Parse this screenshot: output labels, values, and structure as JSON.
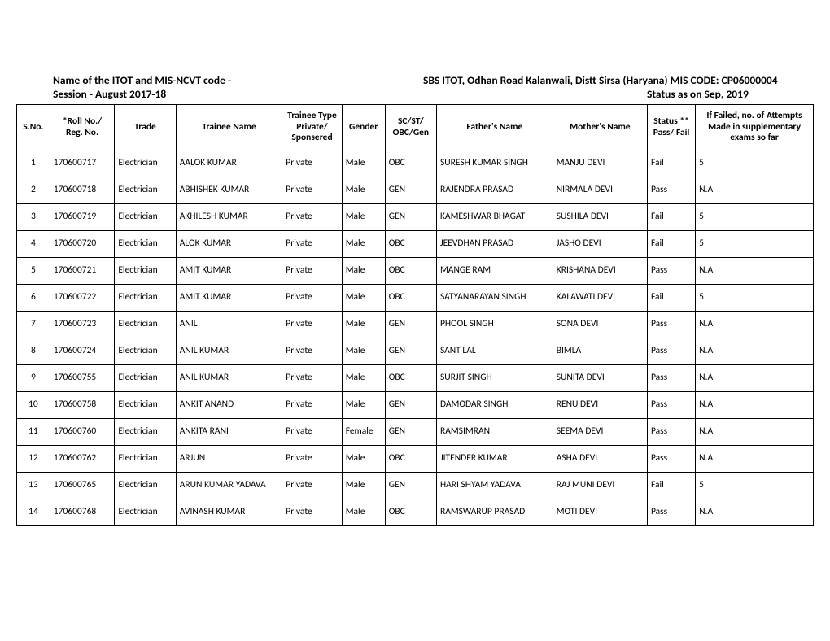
{
  "header": {
    "line1_left": "Name of the ITOT and MIS-NCVT code -",
    "line1_right": "SBS ITOT, Odhan Road Kalanwali, Distt Sirsa (Haryana) MIS CODE: CP06000004",
    "line2_left": "Session - August 2017-18",
    "line2_right": "Status as on Sep, 2019"
  },
  "columns": [
    "S.No.",
    "*Roll No./ Reg. No.",
    "Trade",
    "Trainee Name",
    "Trainee Type Private/ Sponsered",
    "Gender",
    "SC/ST/ OBC/Gen",
    "Father's Name",
    "Mother's Name",
    "Status ** Pass/ Fail",
    "If Failed, no. of Attempts Made in supplementary exams so far"
  ],
  "rows": [
    {
      "sno": "1",
      "roll": "170600717",
      "trade": "Electrician",
      "name": "AALOK KUMAR",
      "type": "Private",
      "gender": "Male",
      "cat": "OBC",
      "father": "SURESH KUMAR SINGH",
      "mother": "MANJU DEVI",
      "status": "Fail",
      "attempts": "5"
    },
    {
      "sno": "2",
      "roll": "170600718",
      "trade": "Electrician",
      "name": "ABHISHEK KUMAR",
      "type": "Private",
      "gender": "Male",
      "cat": "GEN",
      "father": "RAJENDRA PRASAD",
      "mother": "NIRMALA DEVI",
      "status": "Pass",
      "attempts": "N.A"
    },
    {
      "sno": "3",
      "roll": "170600719",
      "trade": "Electrician",
      "name": "AKHILESH KUMAR",
      "type": "Private",
      "gender": "Male",
      "cat": "GEN",
      "father": "KAMESHWAR BHAGAT",
      "mother": "SUSHILA DEVI",
      "status": "Fail",
      "attempts": "5"
    },
    {
      "sno": "4",
      "roll": "170600720",
      "trade": "Electrician",
      "name": "ALOK KUMAR",
      "type": "Private",
      "gender": "Male",
      "cat": "OBC",
      "father": "JEEVDHAN PRASAD",
      "mother": "JASHO DEVI",
      "status": "Fail",
      "attempts": "5"
    },
    {
      "sno": "5",
      "roll": "170600721",
      "trade": "Electrician",
      "name": "AMIT KUMAR",
      "type": "Private",
      "gender": "Male",
      "cat": "OBC",
      "father": "MANGE RAM",
      "mother": "KRISHANA DEVI",
      "status": "Pass",
      "attempts": "N.A"
    },
    {
      "sno": "6",
      "roll": "170600722",
      "trade": "Electrician",
      "name": "AMIT KUMAR",
      "type": "Private",
      "gender": "Male",
      "cat": "OBC",
      "father": "SATYANARAYAN SINGH",
      "mother": "KALAWATI DEVI",
      "status": "Fail",
      "attempts": "5"
    },
    {
      "sno": "7",
      "roll": "170600723",
      "trade": "Electrician",
      "name": "ANIL",
      "type": "Private",
      "gender": "Male",
      "cat": "GEN",
      "father": "PHOOL SINGH",
      "mother": "SONA DEVI",
      "status": "Pass",
      "attempts": "N.A"
    },
    {
      "sno": "8",
      "roll": "170600724",
      "trade": "Electrician",
      "name": "ANIL KUMAR",
      "type": "Private",
      "gender": "Male",
      "cat": "GEN",
      "father": "SANT LAL",
      "mother": "BIMLA",
      "status": "Pass",
      "attempts": "N.A"
    },
    {
      "sno": "9",
      "roll": "170600755",
      "trade": "Electrician",
      "name": "ANIL KUMAR",
      "type": "Private",
      "gender": "Male",
      "cat": "OBC",
      "father": "SURJIT SINGH",
      "mother": "SUNITA DEVI",
      "status": "Pass",
      "attempts": "N.A"
    },
    {
      "sno": "10",
      "roll": "170600758",
      "trade": "Electrician",
      "name": "ANKIT ANAND",
      "type": "Private",
      "gender": "Male",
      "cat": "GEN",
      "father": "DAMODAR SINGH",
      "mother": "RENU DEVI",
      "status": "Pass",
      "attempts": "N.A"
    },
    {
      "sno": "11",
      "roll": "170600760",
      "trade": "Electrician",
      "name": "ANKITA RANI",
      "type": "Private",
      "gender": "Female",
      "cat": "GEN",
      "father": "RAMSIMRAN",
      "mother": "SEEMA DEVI",
      "status": "Pass",
      "attempts": "N.A"
    },
    {
      "sno": "12",
      "roll": "170600762",
      "trade": "Electrician",
      "name": "ARJUN",
      "type": "Private",
      "gender": "Male",
      "cat": "OBC",
      "father": "JITENDER KUMAR",
      "mother": "ASHA DEVI",
      "status": "Pass",
      "attempts": "N.A"
    },
    {
      "sno": "13",
      "roll": "170600765",
      "trade": "Electrician",
      "name": "ARUN KUMAR YADAVA",
      "type": "Private",
      "gender": "Male",
      "cat": "GEN",
      "father": "HARI SHYAM YADAVA",
      "mother": "RAJ MUNI DEVI",
      "status": "Fail",
      "attempts": "5"
    },
    {
      "sno": "14",
      "roll": "170600768",
      "trade": "Electrician",
      "name": "AVINASH KUMAR",
      "type": "Private",
      "gender": "Male",
      "cat": "OBC",
      "father": "RAMSWARUP PRASAD",
      "mother": "MOTI DEVI",
      "status": "Pass",
      "attempts": "N.A"
    }
  ]
}
